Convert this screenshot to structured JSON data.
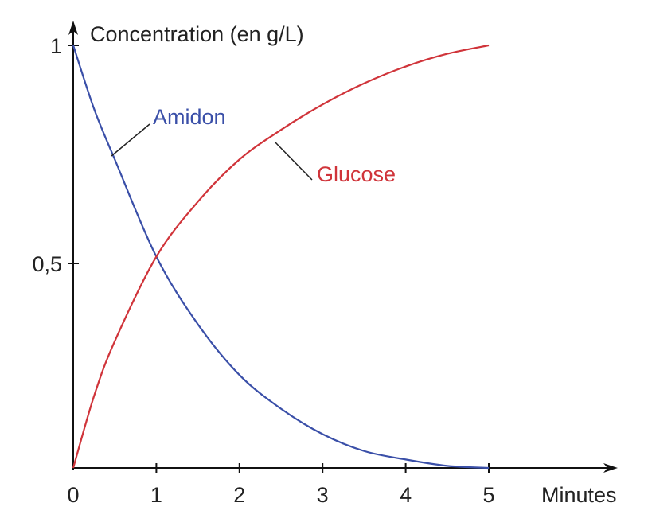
{
  "chart_data": {
    "type": "line",
    "title": "",
    "xlabel": "Minutes",
    "ylabel": "Concentration (en g/L)",
    "xlim": [
      0,
      5
    ],
    "ylim": [
      0,
      1
    ],
    "x_ticks": [
      "0",
      "1",
      "2",
      "3",
      "4",
      "5"
    ],
    "y_ticks": [
      "0,5",
      "1"
    ],
    "grid": false,
    "series": [
      {
        "name": "Amidon",
        "color": "#3a4fa8",
        "x": [
          0,
          0.25,
          0.5,
          1,
          1.5,
          2,
          2.5,
          3,
          3.5,
          4,
          4.5,
          5
        ],
        "y": [
          1,
          0.85,
          0.73,
          0.5,
          0.34,
          0.22,
          0.14,
          0.08,
          0.04,
          0.02,
          0.005,
          0
        ]
      },
      {
        "name": "Glucose",
        "color": "#d0343a",
        "x": [
          0,
          0.25,
          0.5,
          1,
          1.5,
          2,
          2.5,
          3,
          3.5,
          4,
          4.5,
          5
        ],
        "y": [
          0,
          0.17,
          0.3,
          0.5,
          0.63,
          0.73,
          0.8,
          0.86,
          0.91,
          0.95,
          0.98,
          1
        ]
      }
    ]
  }
}
